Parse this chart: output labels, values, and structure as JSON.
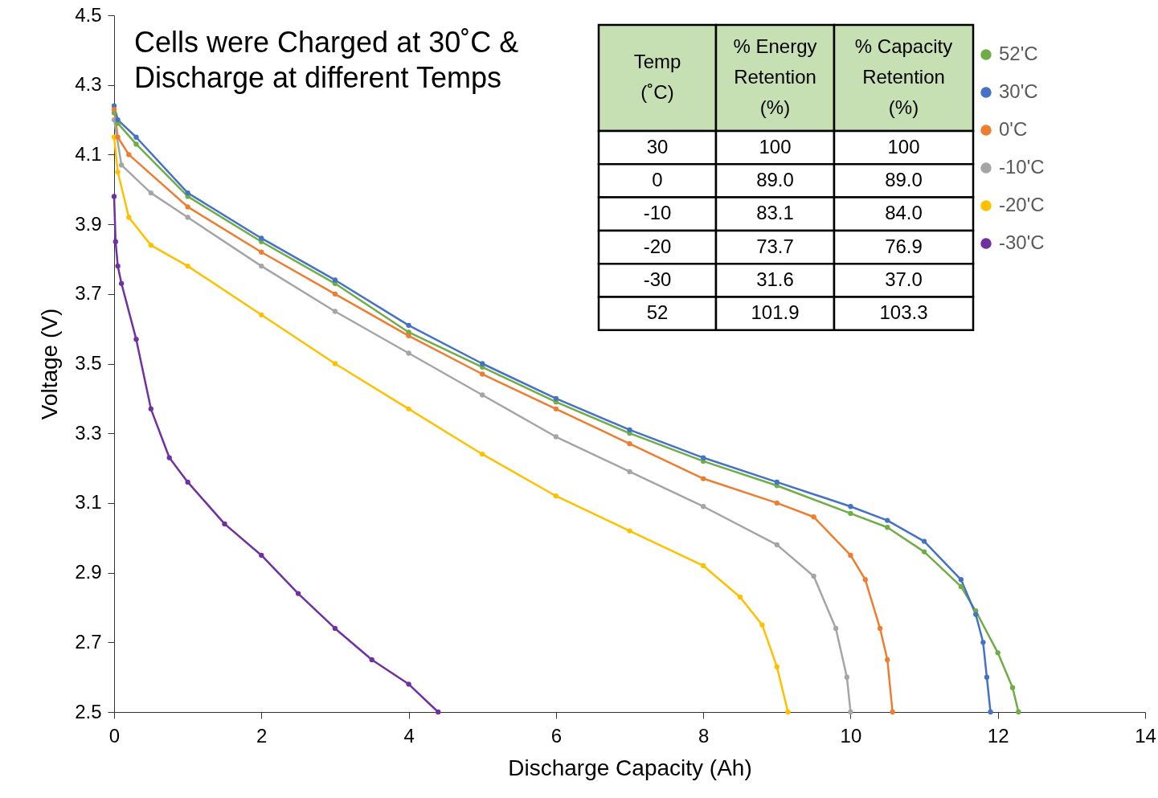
{
  "chart_data": {
    "type": "line",
    "xlabel": "Discharge Capacity (Ah)",
    "ylabel": "Voltage (V)",
    "xlim": [
      0,
      14
    ],
    "xticks": [
      0,
      2,
      4,
      6,
      8,
      10,
      12,
      14
    ],
    "ylim": [
      2.5,
      4.5
    ],
    "yticks": [
      2.5,
      2.7,
      2.9,
      3.1,
      3.3,
      3.5,
      3.7,
      3.9,
      4.1,
      4.3,
      4.5
    ],
    "grid": false,
    "legend": "top right",
    "marker": "circle",
    "line_style": "solid",
    "annotations": [
      "Cells were Charged at 30˚C & Discharge at different Temps",
      "Temp (˚C)",
      "% Energy Retention (%)",
      "% Capacity Retention (%)",
      "30",
      "100",
      "100",
      "0",
      "89.0",
      "89.0",
      "-10",
      "83.1",
      "84.0",
      "-20",
      "73.7",
      "76.9",
      "-30",
      "31.6",
      "37.0",
      "52",
      "101.9",
      "103.3"
    ],
    "series": [
      {
        "name": "52'C",
        "color": "#70ad47",
        "x": [
          0,
          0.05,
          0.3,
          1,
          2,
          3,
          4,
          5,
          6,
          7,
          8,
          9,
          10,
          10.5,
          11,
          11.5,
          11.7,
          12,
          12.2,
          12.28
        ],
        "values": [
          4.22,
          4.19,
          4.13,
          3.98,
          3.85,
          3.73,
          3.59,
          3.49,
          3.39,
          3.3,
          3.22,
          3.15,
          3.07,
          3.03,
          2.96,
          2.86,
          2.79,
          2.67,
          2.57,
          2.5
        ]
      },
      {
        "name": "30'C",
        "color": "#4472c4",
        "x": [
          0,
          0.05,
          0.3,
          1,
          2,
          3,
          4,
          5,
          6,
          7,
          8,
          9,
          10,
          10.5,
          11,
          11.5,
          11.7,
          11.8,
          11.85,
          11.9
        ],
        "values": [
          4.24,
          4.2,
          4.15,
          3.99,
          3.86,
          3.74,
          3.61,
          3.5,
          3.4,
          3.31,
          3.23,
          3.16,
          3.09,
          3.05,
          2.99,
          2.88,
          2.78,
          2.7,
          2.6,
          2.5
        ]
      },
      {
        "name": "0'C",
        "color": "#ed7d31",
        "x": [
          0,
          0.05,
          0.2,
          1,
          2,
          3,
          4,
          5,
          6,
          7,
          8,
          9,
          9.5,
          10,
          10.2,
          10.4,
          10.5,
          10.57
        ],
        "values": [
          4.23,
          4.15,
          4.1,
          3.95,
          3.82,
          3.7,
          3.58,
          3.47,
          3.37,
          3.27,
          3.17,
          3.1,
          3.06,
          2.95,
          2.88,
          2.74,
          2.65,
          2.5
        ]
      },
      {
        "name": "-10'C",
        "color": "#a5a5a5",
        "x": [
          0,
          0.1,
          0.5,
          1,
          2,
          3,
          4,
          5,
          6,
          7,
          8,
          9,
          9.5,
          9.8,
          9.95,
          10.0
        ],
        "values": [
          4.2,
          4.07,
          3.99,
          3.92,
          3.78,
          3.65,
          3.53,
          3.41,
          3.29,
          3.19,
          3.09,
          2.98,
          2.89,
          2.74,
          2.6,
          2.5
        ]
      },
      {
        "name": "-20'C",
        "color": "#ffc000",
        "x": [
          0,
          0.05,
          0.2,
          0.5,
          1,
          2,
          3,
          4,
          5,
          6,
          7,
          8,
          8.5,
          8.8,
          9.0,
          9.15
        ],
        "values": [
          4.15,
          4.05,
          3.92,
          3.84,
          3.78,
          3.64,
          3.5,
          3.37,
          3.24,
          3.12,
          3.02,
          2.92,
          2.83,
          2.75,
          2.63,
          2.5
        ]
      },
      {
        "name": "-30'C",
        "color": "#7030a0",
        "x": [
          0,
          0.02,
          0.05,
          0.1,
          0.3,
          0.5,
          0.75,
          1,
          1.5,
          2,
          2.5,
          3,
          3.5,
          4,
          4.4
        ],
        "values": [
          3.98,
          3.85,
          3.78,
          3.73,
          3.57,
          3.37,
          3.23,
          3.16,
          3.04,
          2.95,
          2.84,
          2.74,
          2.65,
          2.58,
          2.5
        ]
      }
    ]
  }
}
